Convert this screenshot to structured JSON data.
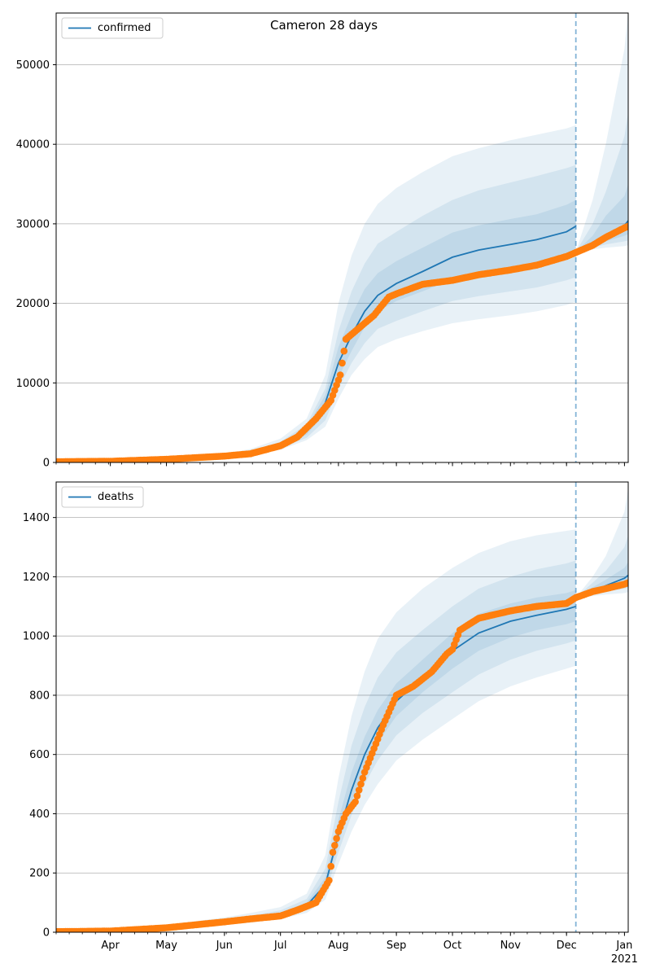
{
  "title": "Cameron 28 days",
  "colors": {
    "model": "#1f77b4",
    "observed": "#ff7f0e",
    "grid": "#b0b0b0",
    "forecast_line": "#1f77b4"
  },
  "x_axis": {
    "start": "2020-03-03",
    "end": "2021-01-03",
    "ticks": [
      {
        "date": "2020-04-01",
        "label": "Apr"
      },
      {
        "date": "2020-05-01",
        "label": "May"
      },
      {
        "date": "2020-06-01",
        "label": "Jun"
      },
      {
        "date": "2020-07-01",
        "label": "Jul"
      },
      {
        "date": "2020-08-01",
        "label": "Aug"
      },
      {
        "date": "2020-09-01",
        "label": "Sep"
      },
      {
        "date": "2020-10-01",
        "label": "Oct"
      },
      {
        "date": "2020-11-01",
        "label": "Nov"
      },
      {
        "date": "2020-12-01",
        "label": "Dec"
      },
      {
        "date": "2021-01-01",
        "label": "Jan"
      }
    ],
    "year_label": "2021",
    "forecast_start": "2020-12-06"
  },
  "chart_data": [
    {
      "type": "line",
      "legend": "confirmed",
      "legend_position": "top-left",
      "grid": "y",
      "ylim": [
        0,
        56500
      ],
      "yticks": [
        0,
        10000,
        20000,
        30000,
        40000,
        50000
      ],
      "model": {
        "dates": [
          "2020-03-03",
          "2020-04-01",
          "2020-05-01",
          "2020-06-01",
          "2020-06-15",
          "2020-07-01",
          "2020-07-15",
          "2020-07-25",
          "2020-08-01",
          "2020-08-08",
          "2020-08-15",
          "2020-08-22",
          "2020-09-01",
          "2020-09-15",
          "2020-10-01",
          "2020-10-15",
          "2020-11-01",
          "2020-11-15",
          "2020-12-01",
          "2020-12-06"
        ],
        "values": [
          100,
          150,
          400,
          800,
          1200,
          2200,
          4000,
          7500,
          12500,
          16000,
          19000,
          21000,
          22500,
          24000,
          25800,
          26700,
          27400,
          28000,
          29000,
          29700
        ]
      },
      "bands": [
        {
          "lower": [
            80,
            120,
            300,
            600,
            900,
            1600,
            2800,
            4500,
            8000,
            11000,
            13000,
            14500,
            15500,
            16500,
            17500,
            18000,
            18500,
            19000,
            19800,
            20200
          ],
          "upper": [
            130,
            200,
            550,
            1100,
            1700,
            3000,
            5500,
            11000,
            20000,
            26000,
            30000,
            32500,
            34500,
            36500,
            38500,
            39500,
            40500,
            41200,
            42000,
            42400
          ]
        },
        {
          "lower": [
            85,
            130,
            330,
            660,
            1000,
            1800,
            3100,
            5300,
            9300,
            12500,
            15000,
            16800,
            17800,
            19000,
            20300,
            20900,
            21500,
            22000,
            22900,
            23300
          ],
          "upper": [
            120,
            180,
            480,
            960,
            1450,
            2600,
            4800,
            9300,
            16500,
            21500,
            25000,
            27500,
            29000,
            31000,
            33000,
            34200,
            35200,
            36000,
            37000,
            37400
          ]
        },
        {
          "lower": [
            90,
            140,
            360,
            720,
            1080,
            2000,
            3500,
            6200,
            10700,
            14000,
            17000,
            19000,
            20300,
            21500,
            23000,
            23800,
            24500,
            25100,
            26000,
            26500
          ],
          "upper": [
            110,
            165,
            440,
            880,
            1320,
            2400,
            4400,
            8500,
            14500,
            18500,
            21800,
            23800,
            25300,
            27000,
            28900,
            29800,
            30600,
            31200,
            32400,
            33000
          ]
        }
      ],
      "forecast": {
        "dates": [
          "2020-12-06",
          "2020-12-15",
          "2020-12-22",
          "2021-01-01",
          "2021-01-03"
        ],
        "values": [
          26500,
          27500,
          28500,
          29800,
          30400
        ],
        "bands": [
          {
            "lower": [
              26500,
              26800,
              27000,
              27200,
              27300
            ],
            "upper": [
              26500,
              33000,
              40000,
              52000,
              57000
            ]
          },
          {
            "lower": [
              26500,
              27000,
              27400,
              27800,
              27900
            ],
            "upper": [
              26500,
              30000,
              34000,
              41000,
              44000
            ]
          },
          {
            "lower": [
              26500,
              27200,
              27800,
              28500,
              28700
            ],
            "upper": [
              26500,
              28500,
              31000,
              33500,
              35000
            ]
          }
        ]
      },
      "observed": {
        "dates": [
          "2020-03-03",
          "2020-04-01",
          "2020-05-01",
          "2020-06-01",
          "2020-06-15",
          "2020-07-01",
          "2020-07-10",
          "2020-07-20",
          "2020-07-28",
          "2020-08-02",
          "2020-08-05",
          "2020-08-10",
          "2020-08-20",
          "2020-08-28",
          "2020-09-01",
          "2020-09-15",
          "2020-10-01",
          "2020-10-15",
          "2020-11-01",
          "2020-11-15",
          "2020-12-01",
          "2020-12-06",
          "2020-12-15",
          "2020-12-22",
          "2021-01-01",
          "2021-01-03"
        ],
        "values": [
          100,
          150,
          400,
          800,
          1100,
          2100,
          3200,
          5500,
          7800,
          11000,
          15500,
          16500,
          18500,
          20800,
          21200,
          22400,
          22900,
          23600,
          24200,
          24800,
          25900,
          26400,
          27300,
          28300,
          29500,
          29700
        ]
      }
    },
    {
      "type": "line",
      "legend": "deaths",
      "legend_position": "top-left",
      "grid": "y",
      "ylim": [
        0,
        1520
      ],
      "yticks": [
        0,
        200,
        400,
        600,
        800,
        1000,
        1200,
        1400
      ],
      "model": {
        "dates": [
          "2020-03-03",
          "2020-04-01",
          "2020-05-01",
          "2020-06-01",
          "2020-06-15",
          "2020-07-01",
          "2020-07-15",
          "2020-07-25",
          "2020-08-01",
          "2020-08-08",
          "2020-08-15",
          "2020-08-22",
          "2020-09-01",
          "2020-09-15",
          "2020-10-01",
          "2020-10-15",
          "2020-11-01",
          "2020-11-15",
          "2020-12-01",
          "2020-12-06"
        ],
        "values": [
          2,
          4,
          15,
          35,
          45,
          60,
          90,
          160,
          330,
          480,
          600,
          690,
          780,
          860,
          950,
          1010,
          1050,
          1070,
          1090,
          1100
        ]
      },
      "bands": [
        {
          "lower": [
            1,
            2,
            10,
            25,
            32,
            45,
            65,
            110,
            230,
            340,
            430,
            500,
            580,
            650,
            720,
            780,
            830,
            860,
            890,
            900
          ],
          "upper": [
            4,
            8,
            25,
            50,
            65,
            85,
            130,
            260,
            520,
            730,
            880,
            990,
            1080,
            1160,
            1230,
            1280,
            1320,
            1340,
            1355,
            1360
          ]
        },
        {
          "lower": [
            1,
            3,
            12,
            29,
            37,
            51,
            75,
            130,
            270,
            395,
            500,
            580,
            665,
            740,
            810,
            870,
            920,
            950,
            975,
            985
          ],
          "upper": [
            3,
            6,
            20,
            43,
            56,
            74,
            112,
            215,
            440,
            630,
            760,
            860,
            945,
            1020,
            1100,
            1160,
            1200,
            1225,
            1245,
            1255
          ]
        },
        {
          "lower": [
            2,
            3,
            13,
            32,
            41,
            55,
            82,
            145,
            300,
            440,
            555,
            640,
            730,
            810,
            890,
            950,
            995,
            1020,
            1040,
            1050
          ],
          "upper": [
            3,
            5,
            18,
            39,
            50,
            66,
            100,
            185,
            380,
            540,
            660,
            750,
            840,
            920,
            1010,
            1075,
            1110,
            1130,
            1145,
            1155
          ]
        }
      ],
      "forecast": {
        "dates": [
          "2020-12-06",
          "2020-12-15",
          "2020-12-22",
          "2021-01-01",
          "2021-01-03"
        ],
        "values": [
          1130,
          1150,
          1170,
          1195,
          1205
        ],
        "bands": [
          {
            "lower": [
              1130,
              1135,
              1140,
              1145,
              1148
            ],
            "upper": [
              1130,
              1200,
              1270,
              1420,
              1500
            ]
          },
          {
            "lower": [
              1130,
              1140,
              1150,
              1160,
              1163
            ],
            "upper": [
              1130,
              1180,
              1220,
              1300,
              1340
            ]
          },
          {
            "lower": [
              1130,
              1143,
              1158,
              1172,
              1178
            ],
            "upper": [
              1130,
              1165,
              1190,
              1230,
              1250
            ]
          }
        ]
      },
      "observed": {
        "dates": [
          "2020-03-03",
          "2020-04-01",
          "2020-05-01",
          "2020-06-01",
          "2020-06-15",
          "2020-07-01",
          "2020-07-10",
          "2020-07-20",
          "2020-07-27",
          "2020-07-29",
          "2020-08-01",
          "2020-08-05",
          "2020-08-10",
          "2020-08-15",
          "2020-08-20",
          "2020-08-25",
          "2020-09-01",
          "2020-09-10",
          "2020-09-20",
          "2020-09-28",
          "2020-10-01",
          "2020-10-05",
          "2020-10-15",
          "2020-11-01",
          "2020-11-15",
          "2020-12-01",
          "2020-12-06",
          "2020-12-15",
          "2020-12-22",
          "2021-01-01",
          "2021-01-03"
        ],
        "values": [
          2,
          4,
          15,
          35,
          45,
          55,
          75,
          100,
          175,
          270,
          340,
          400,
          440,
          540,
          620,
          700,
          800,
          830,
          880,
          940,
          955,
          1020,
          1060,
          1085,
          1100,
          1110,
          1130,
          1150,
          1160,
          1175,
          1180
        ]
      }
    }
  ]
}
